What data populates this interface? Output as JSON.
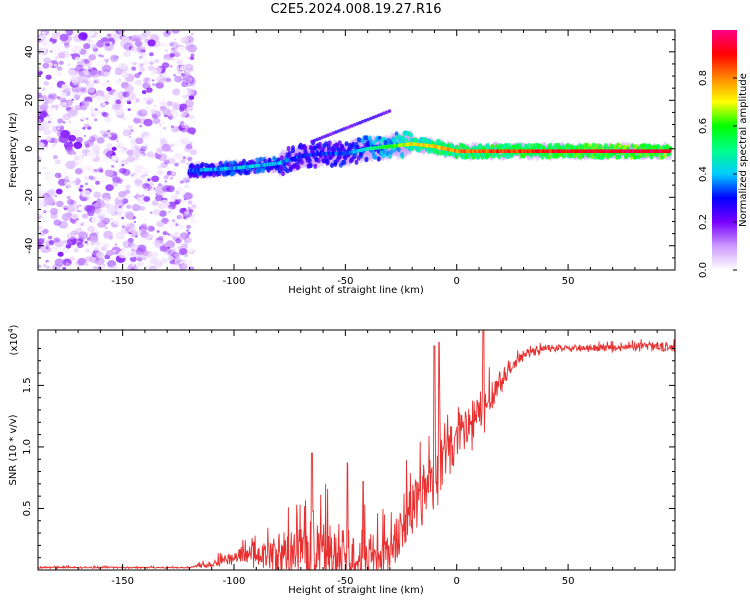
{
  "title": "C2E5.2024.008.19.27.R16",
  "chart_data": [
    {
      "type": "heatmap",
      "name": "spectrogram",
      "xlabel": "Height of straight line (km)",
      "ylabel": "Frequency (Hz)",
      "xlim": [
        -188,
        98
      ],
      "ylim": [
        -50,
        49
      ],
      "xticks": [
        -150,
        -100,
        -50,
        0,
        50
      ],
      "yticks": [
        -40,
        -20,
        0,
        20,
        40
      ],
      "colorbar": {
        "label": "Normalized spectral amplitude",
        "range": [
          0,
          1
        ],
        "ticks": [
          "0.0",
          "0.2",
          "0.4",
          "0.6",
          "0.8"
        ],
        "tick_values": [
          0,
          0.2,
          0.4,
          0.6,
          0.8
        ],
        "colors": [
          "#ffffff",
          "#cc99ff",
          "#7700ff",
          "#0000ff",
          "#00ccff",
          "#00ff88",
          "#00ff00",
          "#ffff00",
          "#ff8800",
          "#ff0000",
          "#ff0088"
        ]
      },
      "ridge": {
        "x": [
          -120,
          -100,
          -80,
          -70,
          -60,
          -50,
          -40,
          -30,
          -20,
          -10,
          0,
          20,
          50,
          80,
          96
        ],
        "freq": [
          -9,
          -8,
          -6,
          -3,
          -2,
          -2,
          0,
          1,
          2,
          1,
          -1,
          -1,
          -1,
          -1,
          -1
        ],
        "amplitude": [
          0.35,
          0.4,
          0.4,
          0.3,
          0.3,
          0.35,
          0.45,
          0.6,
          0.7,
          0.75,
          0.8,
          0.85,
          0.9,
          0.95,
          0.95
        ]
      },
      "noise_region": {
        "x": [
          -188,
          -118
        ],
        "freq": [
          -50,
          49
        ]
      }
    },
    {
      "type": "line",
      "name": "snr",
      "xlabel": "Height of straight line (km)",
      "ylabel": "SNR (10 * v/v)",
      "multiplier_label": "(x10",
      "multiplier_exp": "4",
      "multiplier_close": ")",
      "xlim": [
        -188,
        98
      ],
      "ylim": [
        0,
        1.95
      ],
      "xticks": [
        -150,
        -100,
        -50,
        0,
        50
      ],
      "yticks": [
        0.5,
        1.0,
        1.5
      ],
      "ytick_labels": [
        "0.5",
        "1.0",
        "1.5"
      ],
      "color": "#e83030",
      "envelope": {
        "x": [
          -188,
          -120,
          -110,
          -100,
          -90,
          -80,
          -70,
          -60,
          -50,
          -40,
          -30,
          -25,
          -20,
          -10,
          0,
          10,
          20,
          30,
          40,
          50,
          60,
          70,
          80,
          90,
          98
        ],
        "base": [
          0.02,
          0.02,
          0.05,
          0.1,
          0.12,
          0.1,
          0.15,
          0.15,
          0.1,
          0.1,
          0.15,
          0.3,
          0.5,
          0.8,
          1.05,
          1.25,
          1.55,
          1.75,
          1.8,
          1.8,
          1.8,
          1.8,
          1.81,
          1.82,
          1.8
        ],
        "spread": [
          0.01,
          0.01,
          0.05,
          0.08,
          0.15,
          0.35,
          0.4,
          0.45,
          0.4,
          0.35,
          0.3,
          0.35,
          0.45,
          0.45,
          0.4,
          0.35,
          0.15,
          0.06,
          0.05,
          0.04,
          0.04,
          0.05,
          0.05,
          0.06,
          0.06
        ]
      },
      "peaks": [
        {
          "x": -65,
          "y": 0.95
        },
        {
          "x": -49,
          "y": 0.87
        },
        {
          "x": -42,
          "y": 0.72
        },
        {
          "x": -10,
          "y": 1.82
        },
        {
          "x": -8,
          "y": 1.85
        },
        {
          "x": 12,
          "y": 1.95
        }
      ]
    }
  ]
}
